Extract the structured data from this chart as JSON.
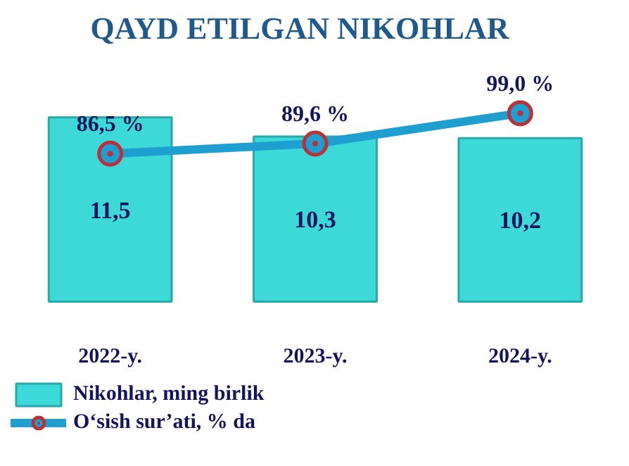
{
  "chart_data": {
    "type": "bar",
    "title": "QAYD   ETILGAN   NIKOHLAR",
    "categories": [
      "2022-y.",
      "2023-y.",
      "2024-y."
    ],
    "series": [
      {
        "name": "Nikohlar, ming birlik",
        "color": "#3dd8d8",
        "values": [
          11.5,
          10.3,
          10.2
        ],
        "value_labels": [
          "11,5",
          "10,3",
          "10,2"
        ]
      },
      {
        "name": "O‘sish sur’ati, % da",
        "type": "line",
        "axis": "y2",
        "color": "#1e9fd0",
        "marker": "circle",
        "values": [
          86.5,
          89.6,
          99.0
        ],
        "value_labels": [
          "86,5 %",
          "89,6 %",
          "99,0 %"
        ]
      }
    ],
    "legend": "bottom left"
  }
}
